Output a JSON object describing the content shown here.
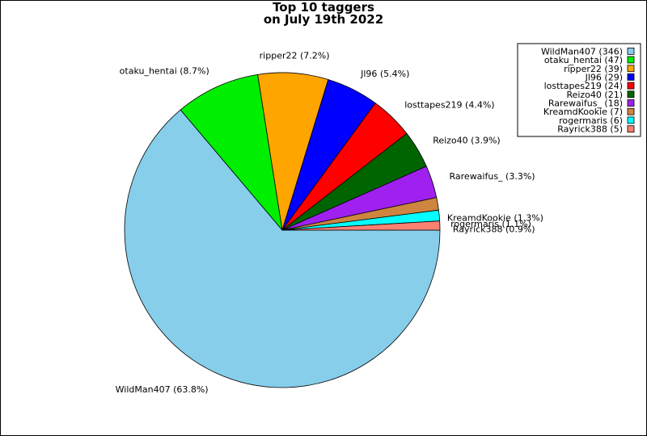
{
  "chart_data": {
    "type": "pie",
    "title_line1": "Top 10 taggers",
    "title_line2": "on July 19th 2022",
    "slices": [
      {
        "name": "WildMan407",
        "value": 346,
        "percent": "63.8%",
        "color": "#87ceeb"
      },
      {
        "name": "otaku_hentai",
        "value": 47,
        "percent": "8.7%",
        "color": "#00ee00"
      },
      {
        "name": "ripper22",
        "value": 39,
        "percent": "7.2%",
        "color": "#ffa500"
      },
      {
        "name": "Jl96",
        "value": 29,
        "percent": "5.4%",
        "color": "#0000ff"
      },
      {
        "name": "losttapes219",
        "value": 24,
        "percent": "4.4%",
        "color": "#ff0000"
      },
      {
        "name": "Reizo40",
        "value": 21,
        "percent": "3.9%",
        "color": "#006400"
      },
      {
        "name": "Rarewaifus_",
        "value": 18,
        "percent": "3.3%",
        "color": "#a020f0"
      },
      {
        "name": "KreamdKookie",
        "value": 7,
        "percent": "1.3%",
        "color": "#cd853f"
      },
      {
        "name": "rogermaris",
        "value": 6,
        "percent": "1.1%",
        "color": "#00ffff"
      },
      {
        "name": "Rayrick388",
        "value": 5,
        "percent": "0.9%",
        "color": "#fa8072"
      }
    ],
    "legend_placement": "top-right"
  }
}
